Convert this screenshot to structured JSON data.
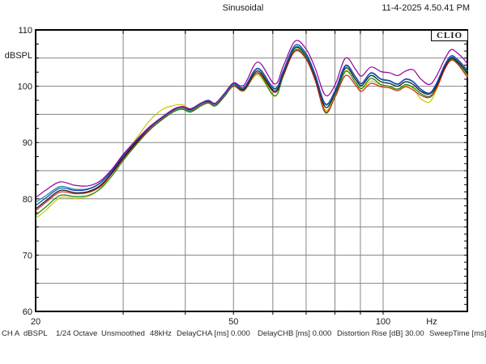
{
  "header": {
    "title": "Sinusoidal",
    "datetime": "11-4-2025 4.50.41 PM"
  },
  "logo": "CLIO",
  "status_bar": {
    "items": [
      "CH A",
      "dBSPL",
      "1/24 Octave",
      "Unsmoothed",
      "48kHz",
      "DelayCHA [ms] 0.000",
      "DelayCHB [ms] 0.000",
      "Distortion Rise [dB] 30.00",
      "SweepTime [ms] 3"
    ]
  },
  "colors": {
    "grid": "#858585",
    "border": "#000000",
    "text": "#1a1a1a"
  },
  "chart_data": {
    "type": "line",
    "title": "Sinusoidal",
    "xlabel": "Hz",
    "ylabel": "dBSPL",
    "x_scale": "log",
    "x_range": [
      20,
      148
    ],
    "y_range": [
      60,
      110
    ],
    "grid": true,
    "legend": "none",
    "x_gridlines": [
      30,
      40,
      50,
      60,
      70,
      80,
      90,
      100
    ],
    "x_tick_labels": [
      {
        "value": 20,
        "label": "20"
      },
      {
        "value": 50,
        "label": "50"
      },
      {
        "value": 100,
        "label": "100"
      }
    ],
    "y_gridline_step": 5,
    "y_label_step": 10,
    "x": [
      20,
      21,
      22.4,
      24,
      25.5,
      27,
      28.5,
      30,
      32,
      34,
      36,
      38,
      39.5,
      41,
      43,
      44.5,
      46,
      48,
      50,
      52.5,
      56,
      60.5,
      63,
      66.5,
      70,
      73,
      76.5,
      80,
      84,
      88,
      90.5,
      94.5,
      99,
      103,
      107,
      111,
      115,
      119,
      124,
      128,
      133,
      137,
      141,
      145,
      148
    ],
    "series": [
      {
        "name": "trace-yellow",
        "color": "#c8c800",
        "values": [
          76.5,
          78.0,
          80.2,
          80.1,
          80.4,
          81.9,
          84.6,
          87.6,
          90.9,
          94.0,
          95.9,
          96.6,
          96.7,
          96.0,
          97.0,
          97.4,
          96.8,
          98.4,
          100.1,
          99.3,
          102.0,
          98.2,
          101.9,
          106.5,
          105.0,
          101.2,
          95.8,
          98.3,
          102.8,
          100.6,
          99.5,
          100.9,
          100.2,
          99.9,
          99.4,
          100.1,
          99.6,
          97.8,
          97.2,
          99.4,
          103.0,
          104.7,
          104.1,
          102.9,
          101.7
        ]
      },
      {
        "name": "trace-green",
        "color": "#118811",
        "values": [
          77.1,
          78.6,
          80.6,
          80.4,
          80.6,
          81.8,
          84.1,
          86.8,
          89.8,
          92.3,
          94.1,
          95.5,
          95.9,
          95.4,
          96.5,
          97.0,
          96.5,
          98.2,
          100.0,
          99.2,
          102.3,
          98.3,
          101.8,
          106.4,
          104.9,
          101.1,
          95.3,
          98.1,
          102.6,
          100.7,
          99.6,
          101.4,
          100.3,
          100.0,
          99.5,
          100.3,
          99.8,
          98.7,
          98.2,
          99.8,
          103.1,
          104.8,
          104.2,
          103.0,
          102.0
        ]
      },
      {
        "name": "trace-red",
        "color": "#cc2222",
        "values": [
          77.9,
          79.4,
          81.2,
          80.9,
          81.1,
          82.2,
          84.5,
          87.1,
          90.0,
          92.5,
          94.3,
          95.7,
          96.1,
          95.6,
          96.7,
          97.2,
          96.7,
          98.4,
          100.1,
          99.3,
          102.4,
          98.9,
          102.0,
          106.2,
          104.8,
          101.0,
          95.5,
          98.0,
          101.9,
          100.2,
          99.1,
          100.5,
          99.9,
          99.7,
          99.2,
          99.9,
          99.3,
          98.4,
          98.0,
          99.6,
          103.0,
          104.6,
          104.0,
          102.6,
          101.5
        ]
      },
      {
        "name": "trace-black",
        "color": "#111111",
        "values": [
          78.2,
          79.7,
          81.5,
          81.1,
          81.3,
          82.4,
          84.7,
          87.3,
          90.2,
          92.7,
          94.5,
          95.9,
          96.3,
          95.8,
          96.9,
          97.4,
          96.9,
          98.6,
          100.3,
          99.5,
          102.7,
          99.1,
          102.3,
          106.8,
          105.3,
          101.6,
          96.3,
          98.7,
          103.2,
          101.2,
          100.1,
          101.9,
          100.8,
          100.5,
          100.0,
          100.8,
          100.3,
          99.1,
          98.6,
          100.1,
          103.4,
          105.0,
          104.4,
          103.3,
          102.3
        ]
      },
      {
        "name": "trace-cyan",
        "color": "#009999",
        "values": [
          79.4,
          80.6,
          82.2,
          81.7,
          81.8,
          82.9,
          85.1,
          87.7,
          90.4,
          92.7,
          94.4,
          95.8,
          96.2,
          95.7,
          96.8,
          97.3,
          96.8,
          98.5,
          100.3,
          99.7,
          103.0,
          99.4,
          102.6,
          107.0,
          105.5,
          101.9,
          96.7,
          99.0,
          103.5,
          101.6,
          100.4,
          102.3,
          101.2,
          100.9,
          100.3,
          101.2,
          100.7,
          99.4,
          98.7,
          100.4,
          103.7,
          105.2,
          104.6,
          103.6,
          102.6
        ]
      },
      {
        "name": "trace-blue",
        "color": "#2233bb",
        "values": [
          78.8,
          80.2,
          81.9,
          81.5,
          81.7,
          82.8,
          85.0,
          87.6,
          90.4,
          92.8,
          94.5,
          95.9,
          96.4,
          95.9,
          97.0,
          97.5,
          97.0,
          98.7,
          100.5,
          99.8,
          103.2,
          99.6,
          102.8,
          107.3,
          105.8,
          102.1,
          96.9,
          99.2,
          103.7,
          101.7,
          100.5,
          102.4,
          101.3,
          101.0,
          100.4,
          101.3,
          100.8,
          99.5,
          98.8,
          100.5,
          103.8,
          105.4,
          104.8,
          103.7,
          102.7
        ]
      },
      {
        "name": "trace-magenta",
        "color": "#990099",
        "values": [
          80.2,
          81.6,
          83.0,
          82.4,
          82.3,
          83.2,
          85.3,
          87.9,
          90.6,
          92.9,
          94.6,
          96.0,
          96.4,
          96.0,
          97.0,
          97.3,
          97.0,
          98.8,
          100.6,
          100.2,
          104.3,
          100.4,
          103.6,
          108.0,
          106.6,
          103.2,
          98.4,
          100.2,
          105.0,
          103.0,
          101.8,
          103.4,
          102.6,
          102.4,
          101.9,
          102.7,
          102.9,
          101.3,
          100.3,
          101.8,
          104.8,
          106.5,
          105.9,
          104.9,
          103.9
        ]
      }
    ]
  }
}
